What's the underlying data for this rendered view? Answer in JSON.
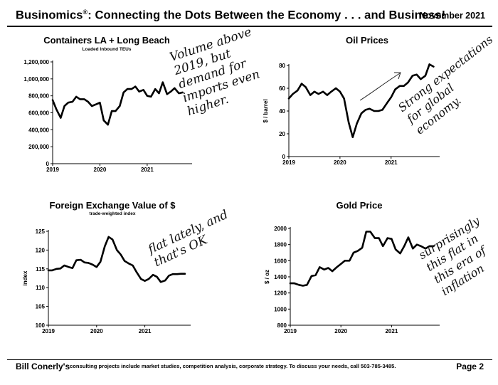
{
  "header": {
    "title_main": "Businomics",
    "title_mark": "®",
    "title_rest": ": Connecting the Dots Between the Economy . . . and Business!",
    "date": "November 2021"
  },
  "footer": {
    "name": "Bill Conerly's",
    "blurb": "consulting projects include market studies, competition analysis, corporate strategy.  To discuss your needs, call 503-785-3485.",
    "page": "Page 2"
  },
  "notes": {
    "containers": "Volume above\n2019, but\ndemand for\nimports even\nhigher.",
    "oil": "Strong expectations\nfor global\neconomy.",
    "fx": "flat lately, and\nthat's OK",
    "gold": "surprisingly\nthis flat in\nthis era of\ninflation"
  },
  "chart_data": [
    {
      "id": "containers",
      "type": "line",
      "title": "Containers LA + Long Beach",
      "subtitle": "Loaded Inbound TEUs",
      "ylabel": "",
      "ylim": [
        0,
        1200000
      ],
      "yticks": [
        0,
        200000,
        400000,
        600000,
        800000,
        1000000,
        1200000
      ],
      "ytick_labels": [
        "0",
        "200,000",
        "400,000",
        "600,000",
        "800,000",
        "1,000,000",
        "1,200,000"
      ],
      "xlim": [
        2019.0,
        2021.95
      ],
      "xticks": [
        2019,
        2020,
        2021
      ],
      "xtick_labels": [
        "2019",
        "2020",
        "2021"
      ],
      "x": [
        2019.0,
        2019.08,
        2019.17,
        2019.25,
        2019.33,
        2019.42,
        2019.5,
        2019.58,
        2019.67,
        2019.75,
        2019.83,
        2019.92,
        2020.0,
        2020.08,
        2020.17,
        2020.25,
        2020.33,
        2020.42,
        2020.5,
        2020.58,
        2020.67,
        2020.75,
        2020.83,
        2020.92,
        2021.0,
        2021.08,
        2021.17,
        2021.25,
        2021.33,
        2021.42,
        2021.5,
        2021.58,
        2021.67,
        2021.75
      ],
      "y": [
        750000,
        640000,
        540000,
        680000,
        720000,
        730000,
        790000,
        760000,
        760000,
        730000,
        680000,
        700000,
        720000,
        510000,
        460000,
        620000,
        620000,
        680000,
        840000,
        880000,
        880000,
        910000,
        850000,
        870000,
        800000,
        790000,
        880000,
        830000,
        960000,
        820000,
        850000,
        890000,
        830000,
        840000
      ],
      "series": [
        {
          "name": ""
        }
      ]
    },
    {
      "id": "oil",
      "type": "line",
      "title": "Oil Prices",
      "subtitle": "",
      "ylabel": "$ / barrel",
      "ylim": [
        0,
        80
      ],
      "yticks": [
        0,
        20,
        40,
        60,
        80
      ],
      "ytick_labels": [
        "0",
        "20",
        "40",
        "60",
        "80"
      ],
      "xlim": [
        2019.0,
        2021.95
      ],
      "xticks": [
        2019,
        2020,
        2021
      ],
      "xtick_labels": [
        "2019",
        "2020",
        "2021"
      ],
      "x": [
        2019.0,
        2019.08,
        2019.17,
        2019.25,
        2019.33,
        2019.42,
        2019.5,
        2019.58,
        2019.67,
        2019.75,
        2019.83,
        2019.92,
        2020.0,
        2020.08,
        2020.17,
        2020.25,
        2020.33,
        2020.42,
        2020.5,
        2020.58,
        2020.67,
        2020.75,
        2020.83,
        2020.92,
        2021.0,
        2021.08,
        2021.17,
        2021.25,
        2021.33,
        2021.42,
        2021.5,
        2021.58,
        2021.67,
        2021.75,
        2021.83
      ],
      "y": [
        51,
        55,
        58,
        64,
        61,
        54,
        57,
        55,
        57,
        54,
        57,
        60,
        57,
        51,
        30,
        17,
        29,
        38,
        41,
        42,
        40,
        40,
        41,
        47,
        52,
        59,
        62,
        62,
        65,
        71,
        72,
        68,
        71,
        81,
        79
      ],
      "series": [
        {
          "name": ""
        }
      ]
    },
    {
      "id": "fx",
      "type": "line",
      "title": "Foreign Exchange Value of $",
      "subtitle": "trade-weighted index",
      "ylabel": "index",
      "ylim": [
        100,
        125
      ],
      "yticks": [
        100,
        105,
        110,
        115,
        120,
        125
      ],
      "ytick_labels": [
        "100",
        "105",
        "110",
        "115",
        "120",
        "125"
      ],
      "xlim": [
        2019.0,
        2021.95
      ],
      "xticks": [
        2019,
        2020,
        2021
      ],
      "xtick_labels": [
        "2019",
        "2020",
        "2021"
      ],
      "x": [
        2019.0,
        2019.08,
        2019.17,
        2019.25,
        2019.33,
        2019.42,
        2019.5,
        2019.58,
        2019.67,
        2019.75,
        2019.83,
        2019.92,
        2020.0,
        2020.08,
        2020.17,
        2020.25,
        2020.33,
        2020.42,
        2020.5,
        2020.58,
        2020.67,
        2020.75,
        2020.83,
        2020.92,
        2021.0,
        2021.08,
        2021.17,
        2021.25,
        2021.33,
        2021.42,
        2021.5,
        2021.58,
        2021.67,
        2021.75,
        2021.83
      ],
      "y": [
        114.6,
        114.6,
        115.0,
        115.1,
        115.9,
        115.5,
        115.2,
        117.3,
        117.4,
        116.7,
        116.6,
        116.1,
        115.5,
        116.9,
        121.0,
        123.5,
        122.8,
        120.0,
        118.8,
        117.1,
        116.4,
        115.9,
        114.1,
        112.3,
        111.8,
        112.3,
        113.4,
        112.9,
        111.5,
        111.9,
        113.2,
        113.6,
        113.6,
        113.7,
        113.7
      ],
      "series": [
        {
          "name": ""
        }
      ]
    },
    {
      "id": "gold",
      "type": "line",
      "title": "Gold Price",
      "subtitle": "",
      "ylabel": "$ / oz",
      "ylim": [
        800,
        2000
      ],
      "yticks": [
        800,
        1000,
        1200,
        1400,
        1600,
        1800,
        2000
      ],
      "ytick_labels": [
        "800",
        "1000",
        "1200",
        "1400",
        "1600",
        "1800",
        "2000"
      ],
      "xlim": [
        2019.0,
        2021.95
      ],
      "xticks": [
        2019,
        2020,
        2021
      ],
      "xtick_labels": [
        "2019",
        "2020",
        "2021"
      ],
      "x": [
        2019.0,
        2019.08,
        2019.17,
        2019.25,
        2019.33,
        2019.42,
        2019.5,
        2019.58,
        2019.67,
        2019.75,
        2019.83,
        2019.92,
        2020.0,
        2020.08,
        2020.17,
        2020.25,
        2020.33,
        2020.42,
        2020.5,
        2020.58,
        2020.67,
        2020.75,
        2020.83,
        2020.92,
        2021.0,
        2021.08,
        2021.17,
        2021.25,
        2021.33,
        2021.42,
        2021.5,
        2021.58,
        2021.67,
        2021.75,
        2021.83
      ],
      "y": [
        1320,
        1320,
        1300,
        1290,
        1300,
        1410,
        1420,
        1520,
        1490,
        1510,
        1470,
        1520,
        1560,
        1600,
        1600,
        1700,
        1720,
        1760,
        1960,
        1960,
        1880,
        1880,
        1780,
        1880,
        1870,
        1740,
        1690,
        1780,
        1890,
        1750,
        1800,
        1780,
        1750,
        1780,
        1780
      ],
      "series": [
        {
          "name": ""
        }
      ]
    }
  ]
}
